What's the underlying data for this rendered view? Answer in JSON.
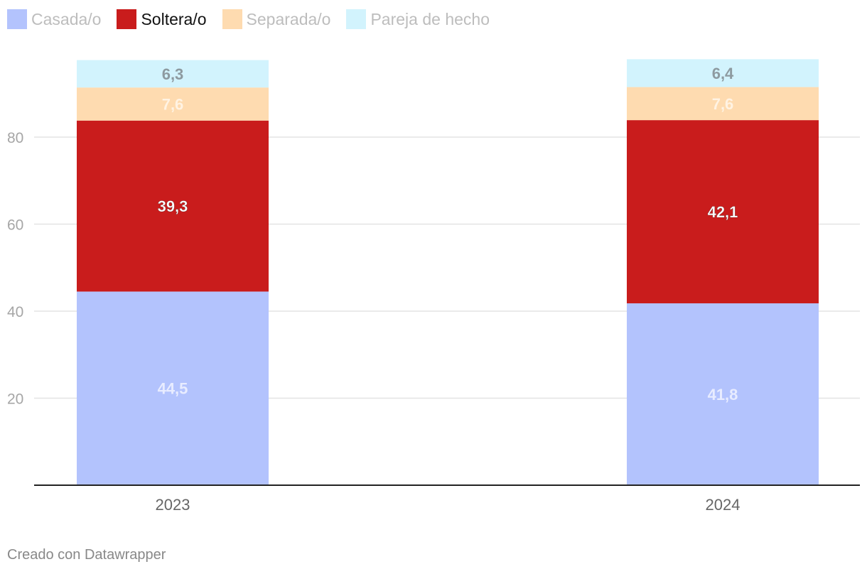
{
  "chart_data": {
    "type": "bar",
    "stacked": true,
    "categories": [
      "2023",
      "2024"
    ],
    "series": [
      {
        "name": "Casada/o",
        "color": "#b3c3fd",
        "label_color": "#e8ecff",
        "values": [
          44.5,
          41.8
        ],
        "labels": [
          "44,5",
          "41,8"
        ]
      },
      {
        "name": "Soltera/o",
        "color": "#c91c1c",
        "label_color": "#ffffff",
        "values": [
          39.3,
          42.1
        ],
        "labels": [
          "39,3",
          "42,1"
        ]
      },
      {
        "name": "Separada/o",
        "color": "#fedbb0",
        "label_color": "#fff3e3",
        "values": [
          7.6,
          7.6
        ],
        "labels": [
          "7,6",
          "7,6"
        ]
      },
      {
        "name": "Pareja de hecho",
        "color": "#d2f3fd",
        "label_color": "#8d9aa0",
        "values": [
          6.3,
          6.4
        ],
        "labels": [
          "6,3",
          "6,4"
        ]
      }
    ],
    "highlighted_series": "Soltera/o",
    "yticks": [
      20,
      40,
      60,
      80
    ],
    "ylim": [
      0,
      98
    ],
    "grid": true,
    "legend_position": "top-left"
  },
  "footer": {
    "credit": "Creado con Datawrapper"
  }
}
